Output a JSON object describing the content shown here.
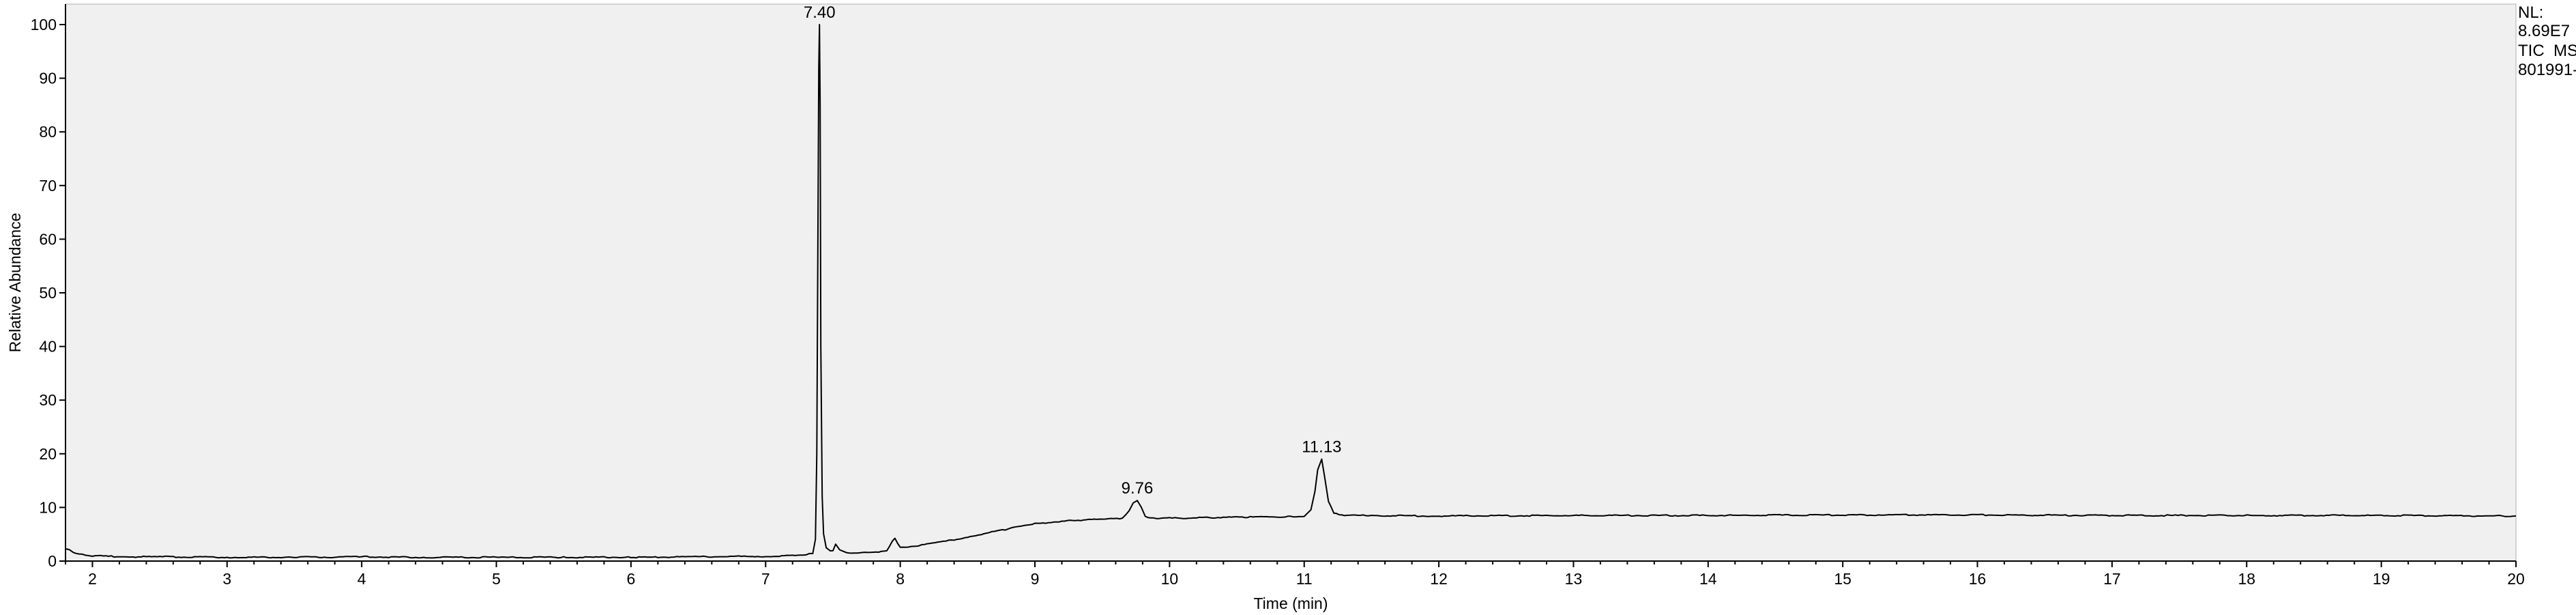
{
  "chart_data": {
    "type": "line",
    "xlabel": "Time (min)",
    "ylabel": "Relative Abundance",
    "xlim": [
      1.8,
      20
    ],
    "ylim": [
      0,
      100
    ],
    "xticks": [
      2,
      3,
      4,
      5,
      6,
      7,
      8,
      9,
      10,
      11,
      12,
      13,
      14,
      15,
      16,
      17,
      18,
      19,
      20
    ],
    "yticks": [
      0,
      10,
      20,
      30,
      40,
      50,
      60,
      70,
      80,
      90,
      100
    ],
    "grid": false,
    "background": "#f0f0f0",
    "line_color": "#000000",
    "series": [
      {
        "x": [
          1.8,
          1.83,
          1.86,
          1.9,
          1.95,
          2.0,
          2.1,
          2.3,
          2.5,
          3.0,
          3.5,
          4.0,
          4.5,
          5.0,
          5.5,
          6.0,
          6.5,
          7.0,
          7.2,
          7.3,
          7.35,
          7.37,
          7.38,
          7.39,
          7.395,
          7.4,
          7.405,
          7.41,
          7.42,
          7.43,
          7.45,
          7.48,
          7.5,
          7.52,
          7.55,
          7.6,
          7.7,
          7.8,
          7.9,
          7.94,
          7.96,
          7.98,
          8.0,
          8.1,
          8.3,
          8.5,
          8.8,
          9.0,
          9.3,
          9.5,
          9.65,
          9.7,
          9.73,
          9.76,
          9.79,
          9.82,
          9.9,
          10.0,
          10.3,
          10.6,
          10.9,
          11.0,
          11.05,
          11.08,
          11.1,
          11.13,
          11.15,
          11.18,
          11.22,
          11.3,
          11.5,
          12.0,
          13.0,
          14.0,
          15.0,
          16.0,
          17.0,
          18.0,
          19.0,
          20.0
        ],
        "y": [
          2.3,
          2.0,
          1.6,
          1.3,
          1.1,
          1.0,
          0.9,
          0.8,
          0.8,
          0.7,
          0.7,
          0.8,
          0.7,
          0.7,
          0.7,
          0.7,
          0.8,
          0.9,
          1.0,
          1.1,
          1.5,
          4.0,
          20.0,
          70.0,
          92.0,
          100.0,
          85.0,
          40.0,
          12.0,
          5.0,
          2.5,
          1.8,
          2.0,
          3.2,
          2.0,
          1.6,
          1.5,
          1.6,
          2.0,
          3.6,
          4.3,
          3.2,
          2.5,
          2.8,
          3.5,
          4.5,
          6.0,
          7.0,
          7.6,
          7.8,
          8.0,
          9.5,
          10.8,
          11.3,
          10.0,
          8.3,
          8.0,
          8.0,
          8.1,
          8.2,
          8.3,
          8.4,
          9.5,
          13.0,
          17.0,
          19.0,
          16.0,
          11.0,
          9.0,
          8.5,
          8.5,
          8.4,
          8.5,
          8.5,
          8.6,
          8.6,
          8.5,
          8.5,
          8.5,
          8.4
        ]
      }
    ],
    "annotations": [
      {
        "text": "7.40",
        "x": 7.4,
        "y": 100
      },
      {
        "text": "9.76",
        "x": 9.76,
        "y": 11.3
      },
      {
        "text": "11.13",
        "x": 11.13,
        "y": 19.0
      }
    ]
  },
  "side_info": {
    "nl_label": "NL:",
    "nl_value": "8.69E7",
    "scan_filter": "TIC  MS",
    "file_name": "801991-"
  }
}
